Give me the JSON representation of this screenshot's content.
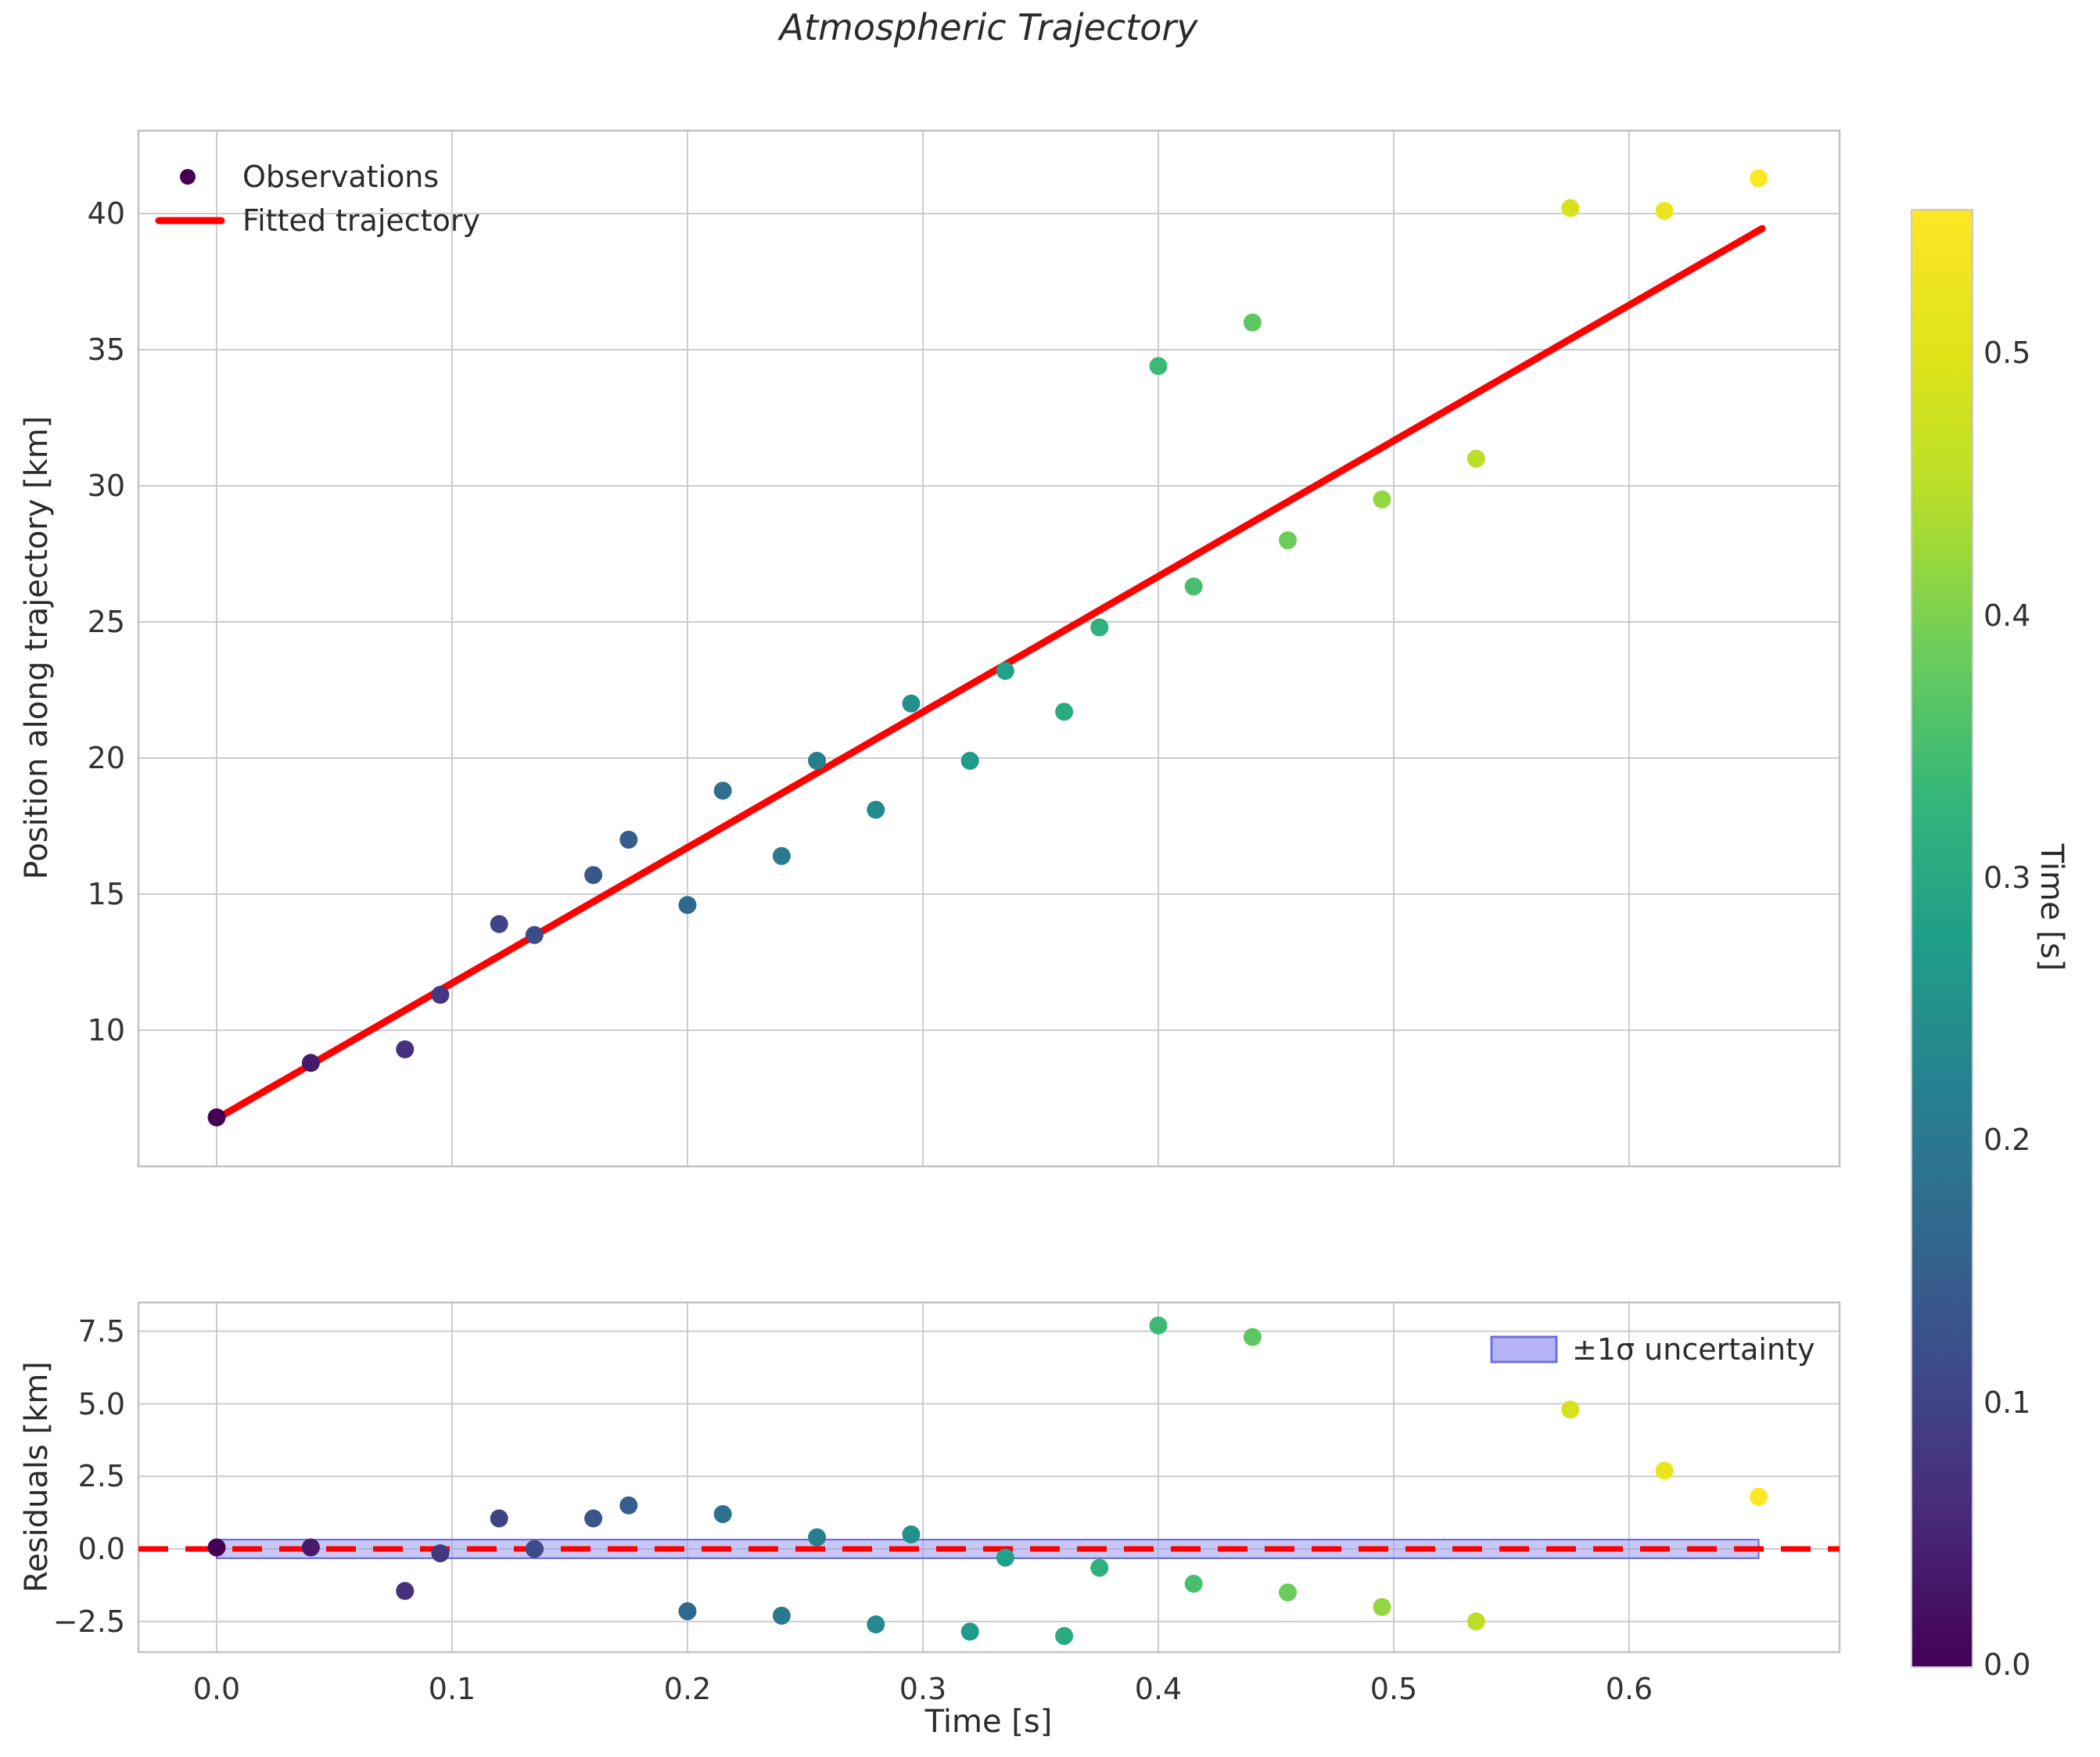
{
  "title": "Atmospheric Trajectory",
  "axes": {
    "xlabel": "Time [s]",
    "xtick_labels": [
      "0.0",
      "0.1",
      "0.2",
      "0.3",
      "0.4",
      "0.5",
      "0.6"
    ],
    "main": {
      "ylabel": "Position along trajectory [km]",
      "ytick_labels": [
        "40",
        "35",
        "30",
        "25",
        "20",
        "15",
        "10"
      ],
      "legend": {
        "observations": "Observations",
        "fit": "Fitted trajectory"
      }
    },
    "residuals": {
      "ylabel": "Residuals [km]",
      "ytick_labels": [
        "7.5",
        "5.0",
        "2.5",
        "0.0",
        "−2.5"
      ],
      "legend": {
        "band": "±1σ uncertainty"
      }
    }
  },
  "colorbar": {
    "label": "Time [s]",
    "tick_labels": [
      "0.0",
      "0.1",
      "0.2",
      "0.3",
      "0.4",
      "0.5"
    ],
    "tick_values": [
      0.0,
      0.1,
      0.2,
      0.3,
      0.4,
      0.5
    ],
    "value_top": 0.555,
    "colormap": "viridis"
  },
  "colors": {
    "fit_line": "#ff0000",
    "zero_line": "#ff0000",
    "band_fill": "#9b9bf0",
    "band_edge": "#6464dc",
    "grid": "#cccccc",
    "spine": "#c2c2c2"
  },
  "chart_data": [
    {
      "id": "trajectory",
      "type": "scatter",
      "title": "Atmospheric Trajectory",
      "xlabel": "Time [s]",
      "ylabel": "Position along trajectory [km]",
      "xlim": [
        -0.033,
        0.689
      ],
      "ylim": [
        5.0,
        43.0
      ],
      "xticks": [
        0.0,
        0.1,
        0.2,
        0.3,
        0.4,
        0.5,
        0.6
      ],
      "yticks": [
        40,
        35,
        30,
        25,
        20,
        15,
        10
      ],
      "grid": true,
      "legend_position": "upper left",
      "color_by": "time",
      "colormap": "viridis",
      "series": [
        {
          "name": "Observations",
          "points": [
            {
              "t": 0.0,
              "y": 6.8,
              "color": "#440154"
            },
            {
              "t": 0.04,
              "y": 8.8,
              "color": "#46196a"
            },
            {
              "t": 0.08,
              "y": 9.3,
              "color": "#462f7c"
            },
            {
              "t": 0.095,
              "y": 11.3,
              "color": "#443780"
            },
            {
              "t": 0.12,
              "y": 13.9,
              "color": "#404486"
            },
            {
              "t": 0.135,
              "y": 13.5,
              "color": "#3d4c89"
            },
            {
              "t": 0.16,
              "y": 15.7,
              "color": "#38578b"
            },
            {
              "t": 0.175,
              "y": 17.0,
              "color": "#355e8c"
            },
            {
              "t": 0.2,
              "y": 14.6,
              "color": "#30698e"
            },
            {
              "t": 0.215,
              "y": 18.8,
              "color": "#2e6f8e"
            },
            {
              "t": 0.24,
              "y": 16.4,
              "color": "#2a798e"
            },
            {
              "t": 0.255,
              "y": 19.9,
              "color": "#277f8e"
            },
            {
              "t": 0.28,
              "y": 18.1,
              "color": "#248a8d"
            },
            {
              "t": 0.295,
              "y": 22.0,
              "color": "#22908c"
            },
            {
              "t": 0.32,
              "y": 19.9,
              "color": "#209b8a"
            },
            {
              "t": 0.335,
              "y": 23.2,
              "color": "#21a187"
            },
            {
              "t": 0.36,
              "y": 21.7,
              "color": "#2aaa81"
            },
            {
              "t": 0.375,
              "y": 24.8,
              "color": "#2fb07d"
            },
            {
              "t": 0.4,
              "y": 34.4,
              "color": "#3bb975"
            },
            {
              "t": 0.415,
              "y": 26.3,
              "color": "#48be6e"
            },
            {
              "t": 0.44,
              "y": 36.0,
              "color": "#5dc762"
            },
            {
              "t": 0.455,
              "y": 28.0,
              "color": "#6acc5b"
            },
            {
              "t": 0.495,
              "y": 29.5,
              "color": "#95d740"
            },
            {
              "t": 0.535,
              "y": 31.0,
              "color": "#bbdf29"
            },
            {
              "t": 0.575,
              "y": 40.2,
              "color": "#d6e21c"
            },
            {
              "t": 0.615,
              "y": 40.1,
              "color": "#ebe51d"
            },
            {
              "t": 0.655,
              "y": 41.3,
              "color": "#fde725"
            }
          ]
        },
        {
          "name": "Fitted trajectory",
          "type": "line",
          "color": "#ff0000",
          "x": [
            0.0,
            0.6565
          ],
          "y": [
            6.75,
            39.45
          ]
        }
      ]
    },
    {
      "id": "residuals",
      "type": "scatter",
      "ylabel": "Residuals [km]",
      "xlim": [
        -0.033,
        0.689
      ],
      "ylim": [
        -3.56,
        8.49
      ],
      "yticks": [
        7.5,
        5.0,
        2.5,
        0.0,
        -2.5
      ],
      "grid": true,
      "zero_line": {
        "y": 0.0,
        "style": "dashed",
        "color": "#ff0000"
      },
      "uncertainty_band": {
        "label": "±1σ uncertainty",
        "x0": 0.0,
        "x1": 0.655,
        "half_width_km": 0.32
      },
      "points": [
        {
          "t": 0.0,
          "r": 0.05
        },
        {
          "t": 0.04,
          "r": 0.05
        },
        {
          "t": 0.08,
          "r": -1.45
        },
        {
          "t": 0.095,
          "r": -0.15
        },
        {
          "t": 0.12,
          "r": 1.05
        },
        {
          "t": 0.135,
          "r": 0.0
        },
        {
          "t": 0.16,
          "r": 1.05
        },
        {
          "t": 0.175,
          "r": 1.5
        },
        {
          "t": 0.2,
          "r": -2.15
        },
        {
          "t": 0.215,
          "r": 1.2
        },
        {
          "t": 0.24,
          "r": -2.3
        },
        {
          "t": 0.255,
          "r": 0.4
        },
        {
          "t": 0.28,
          "r": -2.6
        },
        {
          "t": 0.295,
          "r": 0.5
        },
        {
          "t": 0.32,
          "r": -2.85
        },
        {
          "t": 0.335,
          "r": -0.3
        },
        {
          "t": 0.36,
          "r": -3.0
        },
        {
          "t": 0.375,
          "r": -0.65
        },
        {
          "t": 0.4,
          "r": 7.7
        },
        {
          "t": 0.415,
          "r": -1.2
        },
        {
          "t": 0.44,
          "r": 7.3
        },
        {
          "t": 0.455,
          "r": -1.5
        },
        {
          "t": 0.495,
          "r": -2.0
        },
        {
          "t": 0.535,
          "r": -2.5
        },
        {
          "t": 0.575,
          "r": 4.8
        },
        {
          "t": 0.615,
          "r": 2.7
        },
        {
          "t": 0.655,
          "r": 1.8
        }
      ]
    }
  ]
}
